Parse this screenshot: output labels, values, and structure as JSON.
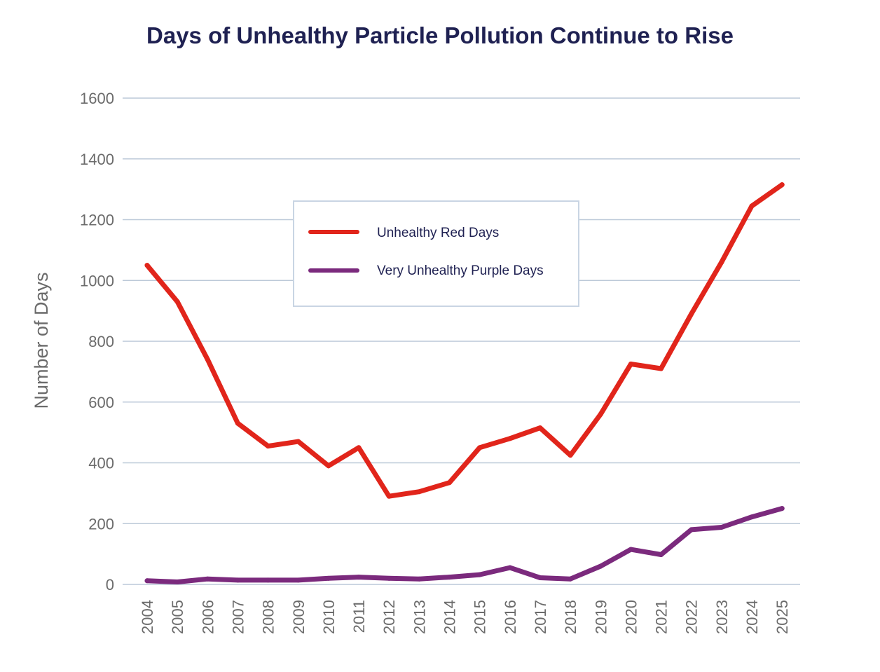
{
  "chart_data": {
    "type": "line",
    "title": "Days of Unhealthy Particle Pollution Continue to Rise",
    "xlabel": "",
    "ylabel": "Number of Days",
    "ylim": [
      0,
      1600
    ],
    "yticks": [
      0,
      200,
      400,
      600,
      800,
      1000,
      1200,
      1400,
      1600
    ],
    "grid": true,
    "legend_position": "center",
    "x": [
      "2004",
      "2005",
      "2006",
      "2007",
      "2008",
      "2009",
      "2010",
      "2011",
      "2012",
      "2013",
      "2014",
      "2015",
      "2016",
      "2017",
      "2018",
      "2019",
      "2020",
      "2021",
      "2022",
      "2023",
      "2024",
      "2025"
    ],
    "series": [
      {
        "name": "Unhealthy Red Days",
        "color": "#e1251b",
        "values": [
          1050,
          930,
          740,
          530,
          455,
          470,
          390,
          450,
          290,
          305,
          335,
          450,
          480,
          515,
          425,
          560,
          725,
          710,
          890,
          1060,
          1245,
          1315
        ]
      },
      {
        "name": "Very Unhealthy Purple Days",
        "color": "#7b2a7d",
        "values": [
          12,
          8,
          18,
          14,
          14,
          14,
          20,
          24,
          20,
          18,
          24,
          32,
          55,
          22,
          18,
          60,
          115,
          98,
          180,
          188,
          222,
          250
        ]
      }
    ]
  },
  "colors": {
    "title": "#1f2152",
    "grid": "#bcc9d8",
    "axis_text": "#6b6b6b",
    "legend_border": "#c9d5e3"
  }
}
